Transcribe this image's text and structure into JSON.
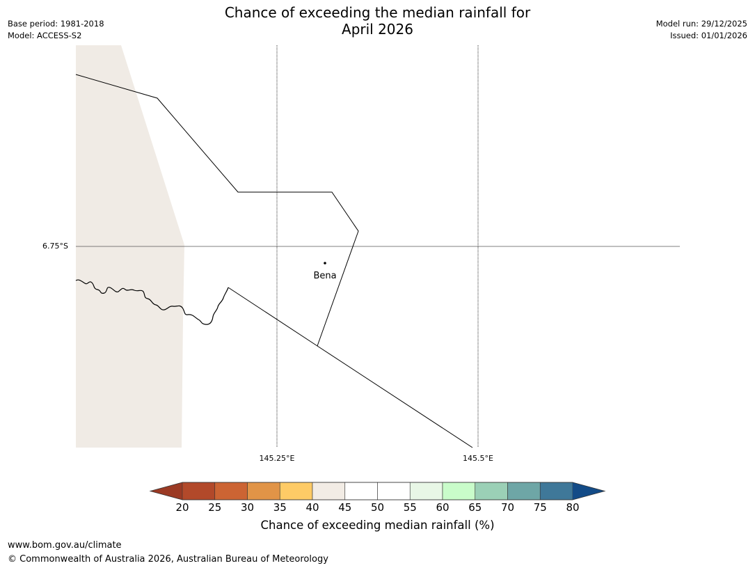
{
  "header": {
    "title_line1": "Chance of exceeding the median rainfall for",
    "title_line2": "April 2026",
    "base_period": "Base period: 1981-2018",
    "model": "Model: ACCESS-S2",
    "model_run": "Model run: 29/12/2025",
    "issued": "Issued: 01/01/2026"
  },
  "map": {
    "lat_label": "6.75°S",
    "lon_labels": [
      "145.25°E",
      "145.5°E"
    ],
    "town": "Bena"
  },
  "colorbar": {
    "ticks": [
      "20",
      "25",
      "30",
      "35",
      "40",
      "45",
      "50",
      "55",
      "60",
      "65",
      "70",
      "75",
      "80"
    ],
    "colors": [
      "#b2492a",
      "#cc6433",
      "#e19447",
      "#fecb66",
      "#f2ece5",
      "#ffffff",
      "#ffffff",
      "#e8f7e6",
      "#c9fcca",
      "#9bd0b6",
      "#6ea6a6",
      "#3f7899"
    ],
    "under_color": "#9b3a24",
    "over_color": "#134b87",
    "label": "Chance of exceeding median rainfall (%)"
  },
  "footer": {
    "url": "www.bom.gov.au/climate",
    "copyright": "© Commonwealth of Australia 2026, Australian Bureau of Meteorology"
  }
}
